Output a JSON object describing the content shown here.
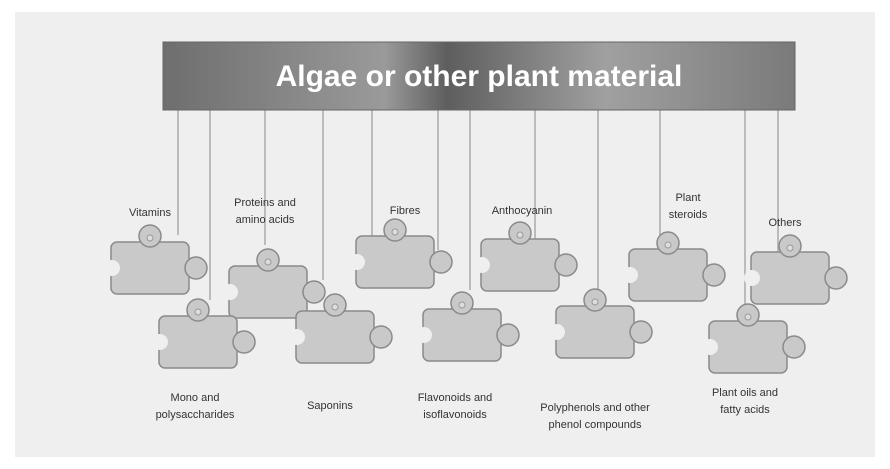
{
  "title": "Algae or other plant material",
  "pieces": [
    {
      "lines": [
        "Vitamins"
      ]
    },
    {
      "lines": [
        "Proteins and",
        "amino acids"
      ]
    },
    {
      "lines": [
        "Fibres"
      ]
    },
    {
      "lines": [
        "Anthocyanin"
      ]
    },
    {
      "lines": [
        "Plant",
        "steroids"
      ]
    },
    {
      "lines": [
        "Others"
      ]
    },
    {
      "lines": [
        "Mono and",
        "polysaccharides"
      ]
    },
    {
      "lines": [
        "Saponins"
      ]
    },
    {
      "lines": [
        "Flavonoids and",
        "isoflavonoids"
      ]
    },
    {
      "lines": [
        "Polyphenols and other",
        "phenol compounds"
      ]
    },
    {
      "lines": [
        "Plant oils and",
        "fatty acids"
      ]
    }
  ]
}
